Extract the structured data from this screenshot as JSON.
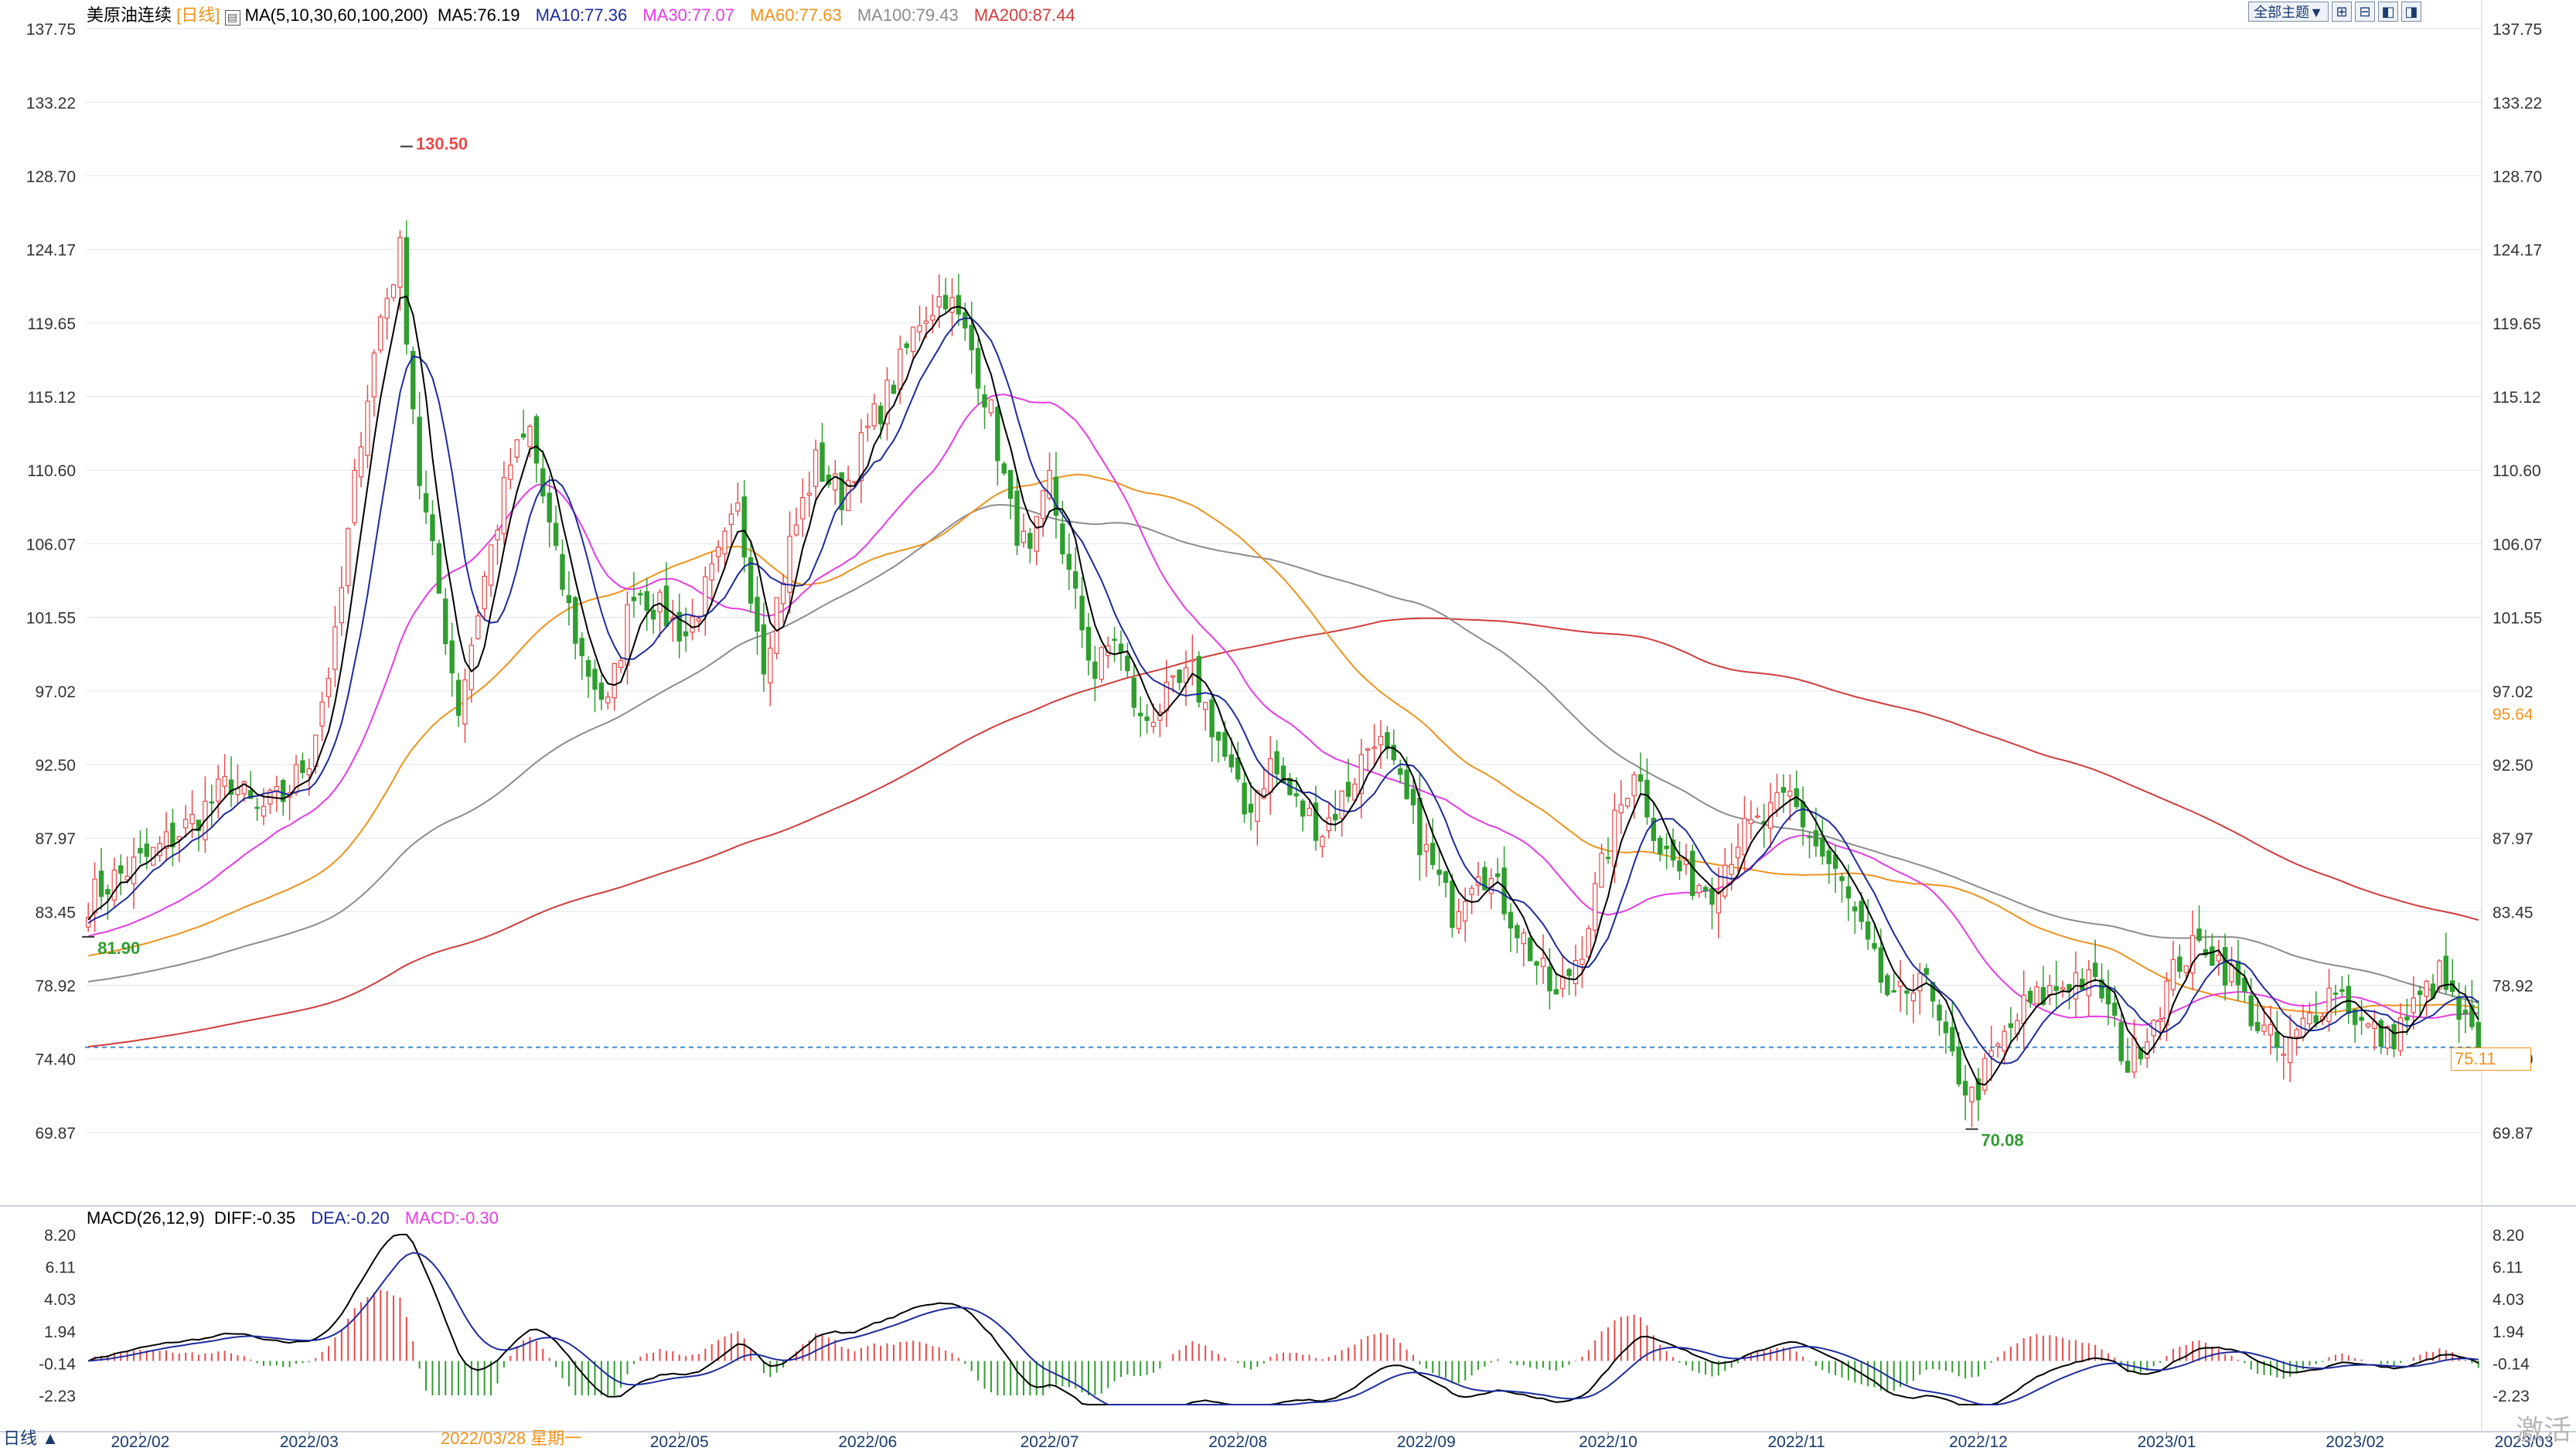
{
  "header": {
    "symbol": "美原油连续",
    "period": "[日线]",
    "ma_label": "MA(5,10,30,60,100,200)",
    "ma5": "MA5:76.19",
    "ma10": "MA10:77.36",
    "ma30": "MA30:77.07",
    "ma60": "MA60:77.63",
    "ma100": "MA100:79.43",
    "ma200": "MA200:87.44"
  },
  "macd_header": {
    "label": "MACD(26,12,9)",
    "diff": "DIFF:-0.35",
    "dea": "DEA:-0.20",
    "macd": "MACD:-0.30"
  },
  "toolbar": {
    "topic_button": "全部主题▼"
  },
  "price_axis": [
    "137.75",
    "133.22",
    "128.70",
    "124.17",
    "119.65",
    "115.12",
    "110.60",
    "106.07",
    "101.55",
    "97.02",
    "92.50",
    "87.97",
    "83.45",
    "78.92",
    "74.40",
    "69.87"
  ],
  "right_extra_labels": {
    "ma60_value": "95.64",
    "last_price": "75.11"
  },
  "macd_axis": [
    "8.20",
    "6.11",
    "4.03",
    "1.94",
    "-0.14",
    "-2.23"
  ],
  "dates": [
    "2022/02",
    "2022/03",
    "2022/05",
    "2022/06",
    "2022/07",
    "2022/08",
    "2022/09",
    "2022/10",
    "2022/11",
    "2022/12",
    "2023/01",
    "2023/02",
    "2023/03"
  ],
  "annotations": {
    "high": "130.50",
    "start_low": "81.90",
    "low": "70.08"
  },
  "bottom": {
    "period_label": "日线 ▲",
    "cursor_date": "2022/03/28 星期一"
  },
  "watermark": "激活",
  "colors": {
    "up": "#e84a4a",
    "down": "#2f9e2f",
    "ma5": "#000000",
    "ma10": "#1c2b9e",
    "ma30": "#e63ce6",
    "ma60": "#f0921c",
    "ma100": "#8c8c8c",
    "ma200": "#d23c3c",
    "dea": "#1c2b9e",
    "diff": "#000000",
    "macd_text": "#e63ce6",
    "grid": "#dfe5ee",
    "ref_line": "#3d8fd6"
  },
  "chart_data": {
    "type": "candlestick",
    "y_range": [
      69.87,
      137.75
    ],
    "macd_range": [
      -2.23,
      8.2
    ],
    "reference_price": 75.11,
    "anchors": [
      {
        "d": 0,
        "p": 84.2
      },
      {
        "d": 4,
        "p": 85.5
      },
      {
        "d": 10,
        "p": 87.0
      },
      {
        "d": 16,
        "p": 89.0
      },
      {
        "d": 22,
        "p": 91.5
      },
      {
        "d": 26,
        "p": 89.5
      },
      {
        "d": 30,
        "p": 90.5
      },
      {
        "d": 34,
        "p": 93.0
      },
      {
        "d": 38,
        "p": 100.0
      },
      {
        "d": 42,
        "p": 113.0
      },
      {
        "d": 45,
        "p": 120.0
      },
      {
        "d": 48,
        "p": 124.0
      },
      {
        "d": 51,
        "p": 110.0
      },
      {
        "d": 54,
        "p": 103.0
      },
      {
        "d": 57,
        "p": 96.0
      },
      {
        "d": 61,
        "p": 104.0
      },
      {
        "d": 65,
        "p": 111.0
      },
      {
        "d": 68,
        "p": 113.0
      },
      {
        "d": 72,
        "p": 105.0
      },
      {
        "d": 76,
        "p": 99.0
      },
      {
        "d": 80,
        "p": 96.0
      },
      {
        "d": 84,
        "p": 103.5
      },
      {
        "d": 88,
        "p": 102.0
      },
      {
        "d": 92,
        "p": 100.5
      },
      {
        "d": 96,
        "p": 104.0
      },
      {
        "d": 100,
        "p": 108.0
      },
      {
        "d": 104,
        "p": 99.0
      },
      {
        "d": 108,
        "p": 106.0
      },
      {
        "d": 112,
        "p": 111.0
      },
      {
        "d": 116,
        "p": 109.0
      },
      {
        "d": 120,
        "p": 113.0
      },
      {
        "d": 124,
        "p": 116.0
      },
      {
        "d": 128,
        "p": 120.0
      },
      {
        "d": 132,
        "p": 121.5
      },
      {
        "d": 136,
        "p": 118.0
      },
      {
        "d": 139,
        "p": 114.0
      },
      {
        "d": 142,
        "p": 108.0
      },
      {
        "d": 145,
        "p": 105.0
      },
      {
        "d": 148,
        "p": 110.0
      },
      {
        "d": 151,
        "p": 104.0
      },
      {
        "d": 155,
        "p": 98.0
      },
      {
        "d": 158,
        "p": 100.5
      },
      {
        "d": 162,
        "p": 95.0
      },
      {
        "d": 166,
        "p": 96.5
      },
      {
        "d": 170,
        "p": 98.0
      },
      {
        "d": 174,
        "p": 94.0
      },
      {
        "d": 178,
        "p": 89.5
      },
      {
        "d": 182,
        "p": 92.5
      },
      {
        "d": 186,
        "p": 90.0
      },
      {
        "d": 190,
        "p": 88.5
      },
      {
        "d": 194,
        "p": 91.0
      },
      {
        "d": 198,
        "p": 94.5
      },
      {
        "d": 202,
        "p": 91.0
      },
      {
        "d": 206,
        "p": 87.0
      },
      {
        "d": 210,
        "p": 83.5
      },
      {
        "d": 214,
        "p": 86.5
      },
      {
        "d": 218,
        "p": 84.0
      },
      {
        "d": 222,
        "p": 81.0
      },
      {
        "d": 226,
        "p": 78.0
      },
      {
        "d": 230,
        "p": 81.5
      },
      {
        "d": 234,
        "p": 87.5
      },
      {
        "d": 238,
        "p": 92.5
      },
      {
        "d": 242,
        "p": 87.5
      },
      {
        "d": 246,
        "p": 85.5
      },
      {
        "d": 250,
        "p": 85.0
      },
      {
        "d": 254,
        "p": 88.0
      },
      {
        "d": 258,
        "p": 89.0
      },
      {
        "d": 262,
        "p": 90.5
      },
      {
        "d": 266,
        "p": 87.5
      },
      {
        "d": 270,
        "p": 85.0
      },
      {
        "d": 274,
        "p": 81.0
      },
      {
        "d": 278,
        "p": 77.5
      },
      {
        "d": 282,
        "p": 80.0
      },
      {
        "d": 286,
        "p": 75.0
      },
      {
        "d": 290,
        "p": 72.0
      },
      {
        "d": 294,
        "p": 75.0
      },
      {
        "d": 298,
        "p": 77.5
      },
      {
        "d": 302,
        "p": 78.5
      },
      {
        "d": 306,
        "p": 79.5
      },
      {
        "d": 310,
        "p": 78.5
      },
      {
        "d": 314,
        "p": 74.0
      },
      {
        "d": 318,
        "p": 77.0
      },
      {
        "d": 322,
        "p": 80.5
      },
      {
        "d": 326,
        "p": 81.5
      },
      {
        "d": 330,
        "p": 79.5
      },
      {
        "d": 334,
        "p": 76.5
      },
      {
        "d": 338,
        "p": 74.5
      },
      {
        "d": 342,
        "p": 77.0
      },
      {
        "d": 346,
        "p": 79.0
      },
      {
        "d": 350,
        "p": 76.5
      },
      {
        "d": 354,
        "p": 75.5
      },
      {
        "d": 358,
        "p": 77.5
      },
      {
        "d": 362,
        "p": 79.5
      },
      {
        "d": 365,
        "p": 77.0
      },
      {
        "d": 368,
        "p": 75.11
      }
    ]
  }
}
